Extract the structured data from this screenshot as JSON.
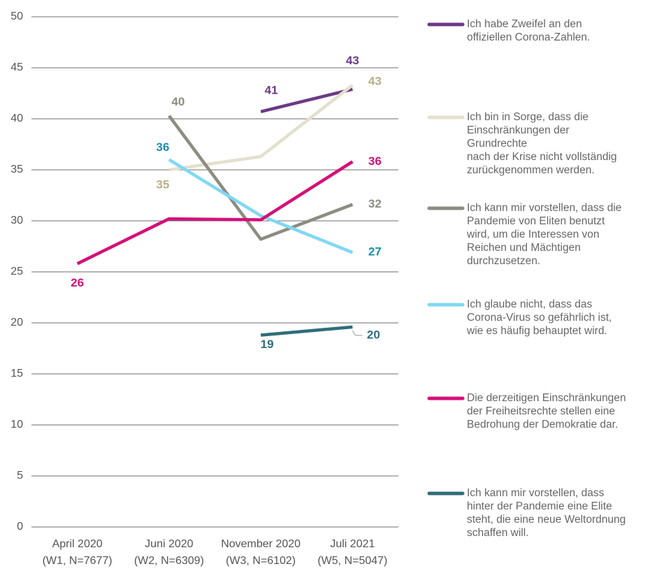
{
  "chart_data": {
    "type": "line",
    "categories": [
      "April 2020\n(W1, N=7677)",
      "Juni 2020\n(W2, N=6309)",
      "November 2020\n(W3, N=6102)",
      "Juli 2021\n(W5, N=5047)"
    ],
    "ylim": [
      0,
      50
    ],
    "yticks": [
      0,
      5,
      10,
      15,
      20,
      25,
      30,
      35,
      40,
      45,
      50
    ],
    "grid": true,
    "series": [
      {
        "name": "Ich habe Zweifel an den\noffiziellen Corona-Zahlen.",
        "color": "#6b3a87",
        "label_color": "#6b3a87",
        "values": [
          null,
          null,
          40.7,
          42.9
        ],
        "value_labels": [
          null,
          null,
          "41",
          "43"
        ]
      },
      {
        "name": "Ich bin in Sorge, dass die\nEinschränkungen der\nGrundrechte\nnach der Krise nicht vollständig\nzurückgenommen werden.",
        "color": "#e4e0cd",
        "label_color": "#b7ae86",
        "values": [
          null,
          35.0,
          36.3,
          43.3
        ],
        "value_labels": [
          null,
          "35",
          null,
          "43"
        ]
      },
      {
        "name": "Ich kann mir vorstellen, dass die\nPandemie von Eliten benutzt\nwird, um die Interessen von\nReichen und Mächtigen\ndurchzusetzen.",
        "color": "#8c8c80",
        "label_color": "#8c8c80",
        "values": [
          null,
          40.3,
          28.2,
          31.6
        ],
        "value_labels": [
          null,
          "40",
          null,
          "32"
        ]
      },
      {
        "name": "Ich glaube nicht, dass das\nCorona-Virus so gefährlich ist,\nwie es häufig behauptet wird.",
        "color": "#80d8f2",
        "label_color": "#1a8fb0",
        "values": [
          null,
          36.0,
          30.5,
          26.9
        ],
        "value_labels": [
          null,
          "36",
          null,
          "27"
        ]
      },
      {
        "name": "Die derzeitigen Einschränkungen\nder Freiheitsrechte stellen eine\nBedrohung der Demokratie dar.",
        "color": "#d4117a",
        "label_color": "#d4117a",
        "values": [
          25.8,
          30.2,
          30.1,
          35.8
        ],
        "value_labels": [
          "26",
          null,
          null,
          "36"
        ]
      },
      {
        "name": "Ich kann mir vorstellen, dass\nhinter der Pandemie eine Elite\nsteht, die eine neue Weltordnung\nschaffen will.",
        "color": "#2f6e7a",
        "label_color": "#2f6e7a",
        "values": [
          null,
          null,
          18.8,
          19.6
        ],
        "value_labels": [
          null,
          null,
          "19",
          "20"
        ]
      }
    ]
  }
}
